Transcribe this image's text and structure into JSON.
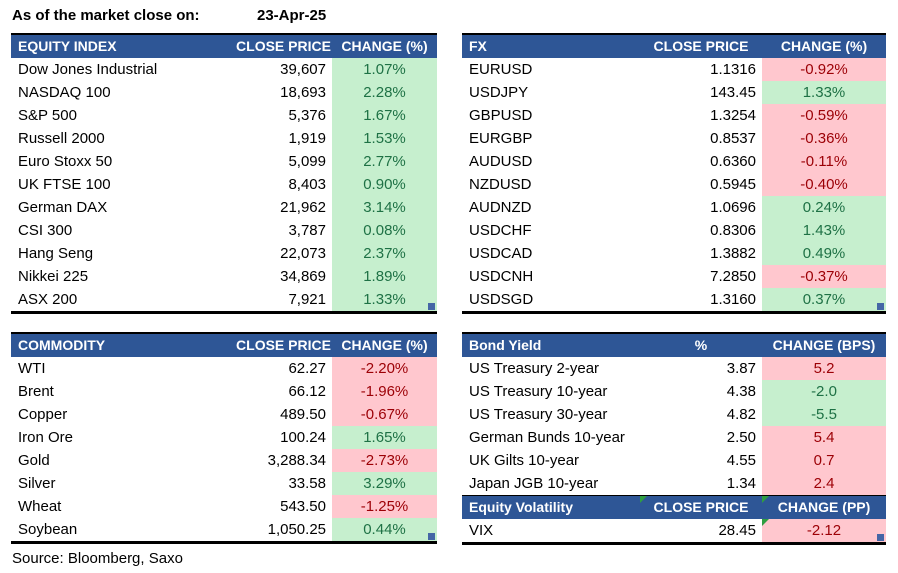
{
  "meta": {
    "as_of_label": "As of the market close on:",
    "as_of_date": "23-Apr-25",
    "source": "Source: Bloomberg, Saxo"
  },
  "colors": {
    "header_bg": "#2E5696",
    "pos_bg": "#C6EFCE",
    "pos_text": "#1E7145",
    "neg_bg": "#FFC7CE",
    "neg_text": "#9C0006",
    "comment_flag": "#2F9E41",
    "resize_handle": "#4566A6"
  },
  "chart_data": [
    {
      "type": "table",
      "title": "EQUITY INDEX",
      "headers": [
        "EQUITY INDEX",
        "CLOSE PRICE",
        "CHANGE (%)"
      ],
      "rows": [
        {
          "name": "Dow Jones Industrial",
          "value": "39,607",
          "change": "1.07%",
          "tone": "green"
        },
        {
          "name": "NASDAQ 100",
          "value": "18,693",
          "change": "2.28%",
          "tone": "green"
        },
        {
          "name": "S&P 500",
          "value": "5,376",
          "change": "1.67%",
          "tone": "green"
        },
        {
          "name": "Russell 2000",
          "value": "1,919",
          "change": "1.53%",
          "tone": "green"
        },
        {
          "name": "Euro Stoxx 50",
          "value": "5,099",
          "change": "2.77%",
          "tone": "green"
        },
        {
          "name": "UK FTSE 100",
          "value": "8,403",
          "change": "0.90%",
          "tone": "green"
        },
        {
          "name": "German DAX",
          "value": "21,962",
          "change": "3.14%",
          "tone": "green"
        },
        {
          "name": "CSI 300",
          "value": "3,787",
          "change": "0.08%",
          "tone": "green"
        },
        {
          "name": "Hang Seng",
          "value": "22,073",
          "change": "2.37%",
          "tone": "green"
        },
        {
          "name": "Nikkei 225",
          "value": "34,869",
          "change": "1.89%",
          "tone": "green"
        },
        {
          "name": "ASX 200",
          "value": "7,921",
          "change": "1.33%",
          "tone": "green"
        }
      ]
    },
    {
      "type": "table",
      "title": "FX",
      "headers": [
        "FX",
        "CLOSE PRICE",
        "CHANGE (%)"
      ],
      "rows": [
        {
          "name": "EURUSD",
          "value": "1.1316",
          "change": "-0.92%",
          "tone": "red"
        },
        {
          "name": "USDJPY",
          "value": "143.45",
          "change": "1.33%",
          "tone": "green"
        },
        {
          "name": "GBPUSD",
          "value": "1.3254",
          "change": "-0.59%",
          "tone": "red"
        },
        {
          "name": "EURGBP",
          "value": "0.8537",
          "change": "-0.36%",
          "tone": "red"
        },
        {
          "name": "AUDUSD",
          "value": "0.6360",
          "change": "-0.11%",
          "tone": "red"
        },
        {
          "name": "NZDUSD",
          "value": "0.5945",
          "change": "-0.40%",
          "tone": "red"
        },
        {
          "name": "AUDNZD",
          "value": "1.0696",
          "change": "0.24%",
          "tone": "green"
        },
        {
          "name": "USDCHF",
          "value": "0.8306",
          "change": "1.43%",
          "tone": "green"
        },
        {
          "name": "USDCAD",
          "value": "1.3882",
          "change": "0.49%",
          "tone": "green"
        },
        {
          "name": "USDCNH",
          "value": "7.2850",
          "change": "-0.37%",
          "tone": "red"
        },
        {
          "name": "USDSGD",
          "value": "1.3160",
          "change": "0.37%",
          "tone": "green"
        }
      ]
    },
    {
      "type": "table",
      "title": "COMMODITY",
      "headers": [
        "COMMODITY",
        "CLOSE PRICE",
        "CHANGE (%)"
      ],
      "rows": [
        {
          "name": "WTI",
          "value": "62.27",
          "change": "-2.20%",
          "tone": "red"
        },
        {
          "name": "Brent",
          "value": "66.12",
          "change": "-1.96%",
          "tone": "red"
        },
        {
          "name": "Copper",
          "value": "489.50",
          "change": "-0.67%",
          "tone": "red"
        },
        {
          "name": "Iron Ore",
          "value": "100.24",
          "change": "1.65%",
          "tone": "green"
        },
        {
          "name": "Gold",
          "value": "3,288.34",
          "change": "-2.73%",
          "tone": "red"
        },
        {
          "name": "Silver",
          "value": "33.58",
          "change": "3.29%",
          "tone": "green"
        },
        {
          "name": "Wheat",
          "value": "543.50",
          "change": "-1.25%",
          "tone": "red"
        },
        {
          "name": "Soybean",
          "value": "1,050.25",
          "change": "0.44%",
          "tone": "green"
        }
      ]
    },
    {
      "type": "table",
      "title": "Bond Yield",
      "headers": [
        "Bond Yield",
        "%",
        "CHANGE (BPS)"
      ],
      "rows": [
        {
          "name": "US Treasury 2-year",
          "value": "3.87",
          "change": "5.2",
          "tone": "red"
        },
        {
          "name": "US Treasury 10-year",
          "value": "4.38",
          "change": "-2.0",
          "tone": "green"
        },
        {
          "name": "US Treasury 30-year",
          "value": "4.82",
          "change": "-5.5",
          "tone": "green"
        },
        {
          "name": "German Bunds 10-year",
          "value": "2.50",
          "change": "5.4",
          "tone": "red"
        },
        {
          "name": "UK Gilts 10-year",
          "value": "4.55",
          "change": "0.7",
          "tone": "red"
        },
        {
          "name": "Japan JGB 10-year",
          "value": "1.34",
          "change": "2.4",
          "tone": "red"
        }
      ]
    },
    {
      "type": "table",
      "title": "Equity Volatility",
      "headers": [
        "Equity Volatility",
        "CLOSE PRICE",
        "CHANGE (PP)"
      ],
      "rows": [
        {
          "name": "VIX",
          "value": "28.45",
          "change": "-2.12",
          "tone": "red"
        }
      ]
    }
  ]
}
